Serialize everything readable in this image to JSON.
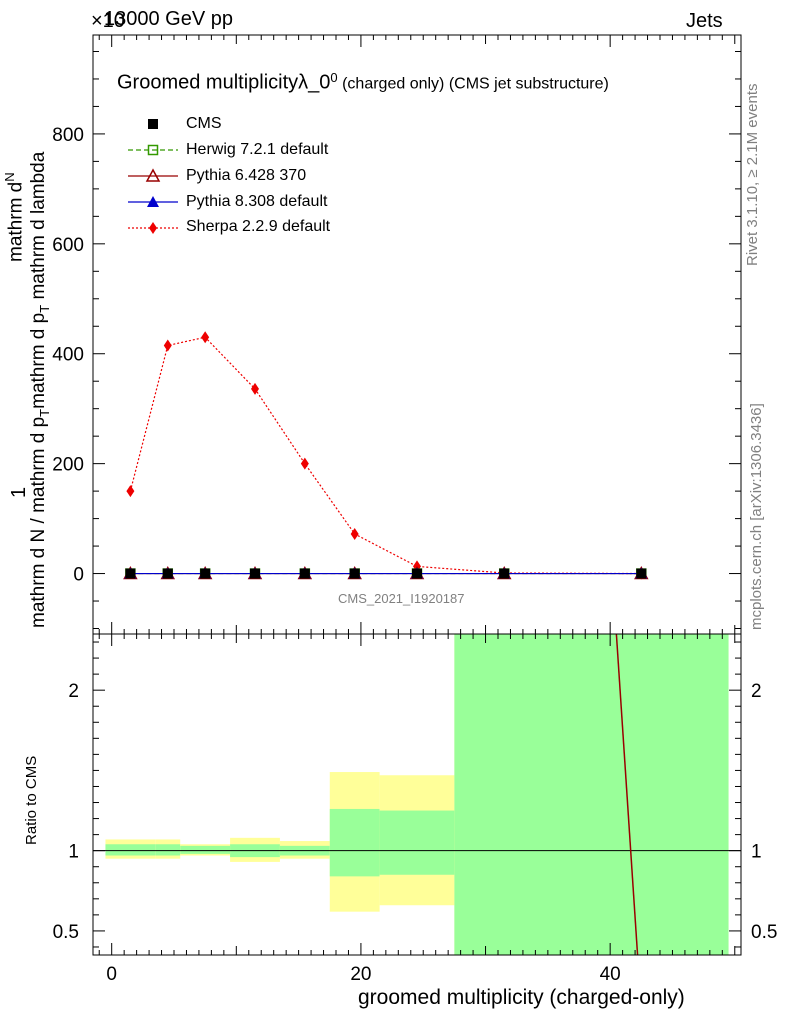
{
  "header": {
    "energy": "13000 GeV pp",
    "process": "Jets",
    "exponent": "×10"
  },
  "title": {
    "main": "Groomed multiplicityλ_0",
    "sup": "0",
    "rest": " (charged only) (CMS jet substructure)"
  },
  "side_text": {
    "rivet": "Rivet 3.1.10, ≥ 2.1M events",
    "mcplots": "mcplots.cern.ch [arXiv:1306.3436]"
  },
  "watermark": "CMS_2021_I1920187",
  "ylabel_top": {
    "numerator": "1",
    "part1": "mathrm d N / mathrm d p",
    "sub1": "T",
    "part2": "mathrm d p",
    "sub2": "T",
    "part3": " mathrm d lambda",
    "top": "mathrm d",
    "top2": "N"
  },
  "ylabel_bottom": "Ratio to CMS",
  "xlabel": "groomed multiplicity (charged-only)",
  "legend": [
    {
      "name": "CMS",
      "color": "#000000",
      "marker": "square-filled",
      "line": "none"
    },
    {
      "name": "Herwig 7.2.1 default",
      "color": "#339900",
      "marker": "square-open",
      "line": "dashed"
    },
    {
      "name": "Pythia 6.428 370",
      "color": "#990000",
      "marker": "triangle-open",
      "line": "solid"
    },
    {
      "name": "Pythia 8.308 default",
      "color": "#0000cc",
      "marker": "triangle-filled",
      "line": "solid"
    },
    {
      "name": "Sherpa 2.2.9 default",
      "color": "#ee0000",
      "marker": "diamond-filled",
      "line": "dotted"
    }
  ],
  "chart_data": {
    "type": "line",
    "xlim": [
      -1.5,
      50.5
    ],
    "ylim_top": [
      -110,
      980
    ],
    "yticks_top": [
      0,
      200,
      400,
      600,
      800
    ],
    "ylim_bottom": [
      0.35,
      2.35
    ],
    "yticks_bottom": [
      0.5,
      1,
      2
    ],
    "xticks": [
      0,
      20,
      40
    ],
    "x": [
      1.5,
      4.5,
      7.5,
      11.5,
      15.5,
      19.5,
      24.5,
      31.5,
      42.5
    ],
    "series": [
      {
        "name": "CMS",
        "values": [
          0,
          0,
          0,
          0,
          0,
          0,
          0,
          0,
          0
        ]
      },
      {
        "name": "Herwig 7.2.1 default",
        "values": [
          0,
          0,
          0,
          0,
          0,
          0,
          0,
          0,
          0
        ]
      },
      {
        "name": "Pythia 6.428 370",
        "values": [
          0,
          0,
          0,
          0,
          0,
          0,
          0,
          0,
          0
        ]
      },
      {
        "name": "Pythia 8.308 default",
        "values": [
          0,
          0,
          0,
          0,
          0,
          0,
          0,
          0,
          0
        ]
      },
      {
        "name": "Sherpa 2.2.9 default",
        "values": [
          150,
          415,
          430,
          336,
          200,
          72,
          13,
          1,
          0
        ]
      }
    ],
    "ratio_bands": [
      {
        "x0": -0.5,
        "x1": 3.5,
        "green": [
          0.97,
          1.04
        ],
        "yellow": [
          0.95,
          1.07
        ]
      },
      {
        "x0": 3.5,
        "x1": 5.5,
        "green": [
          0.97,
          1.04
        ],
        "yellow": [
          0.95,
          1.07
        ]
      },
      {
        "x0": 5.5,
        "x1": 9.5,
        "green": [
          0.98,
          1.03
        ],
        "yellow": [
          0.97,
          1.04
        ]
      },
      {
        "x0": 9.5,
        "x1": 13.5,
        "green": [
          0.96,
          1.04
        ],
        "yellow": [
          0.93,
          1.08
        ]
      },
      {
        "x0": 13.5,
        "x1": 17.5,
        "green": [
          0.97,
          1.03
        ],
        "yellow": [
          0.95,
          1.06
        ]
      },
      {
        "x0": 17.5,
        "x1": 21.5,
        "green": [
          0.84,
          1.26
        ],
        "yellow": [
          0.62,
          1.49
        ]
      },
      {
        "x0": 21.5,
        "x1": 27.5,
        "green": [
          0.85,
          1.25
        ],
        "yellow": [
          0.66,
          1.47
        ]
      },
      {
        "x0": 27.5,
        "x1": 49.5,
        "green": [
          0.35,
          2.35
        ],
        "yellow": [
          0.35,
          2.35
        ]
      }
    ],
    "ratio_line": {
      "name": "Pythia 6.428 370",
      "x": [
        40.5,
        42.2
      ],
      "y": [
        2.35,
        0.35
      ]
    }
  }
}
